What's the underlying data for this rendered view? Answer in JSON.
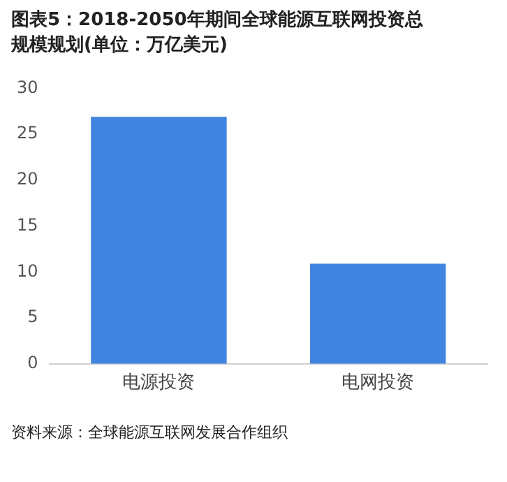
{
  "chart_data": {
    "type": "bar",
    "title": "图表5：2018-2050年期间全球能源互联网投资总规模规划(单位：万亿美元)",
    "categories": [
      "电源投资",
      "电网投资"
    ],
    "values": [
      26.9,
      10.9
    ],
    "color": "#4285e0",
    "ylim": [
      0,
      30
    ],
    "yticks": [
      0,
      5,
      10,
      15,
      20,
      25,
      30
    ],
    "grid": false,
    "annotations": [
      "资料来源：全球能源互联网发展合作组织"
    ]
  }
}
